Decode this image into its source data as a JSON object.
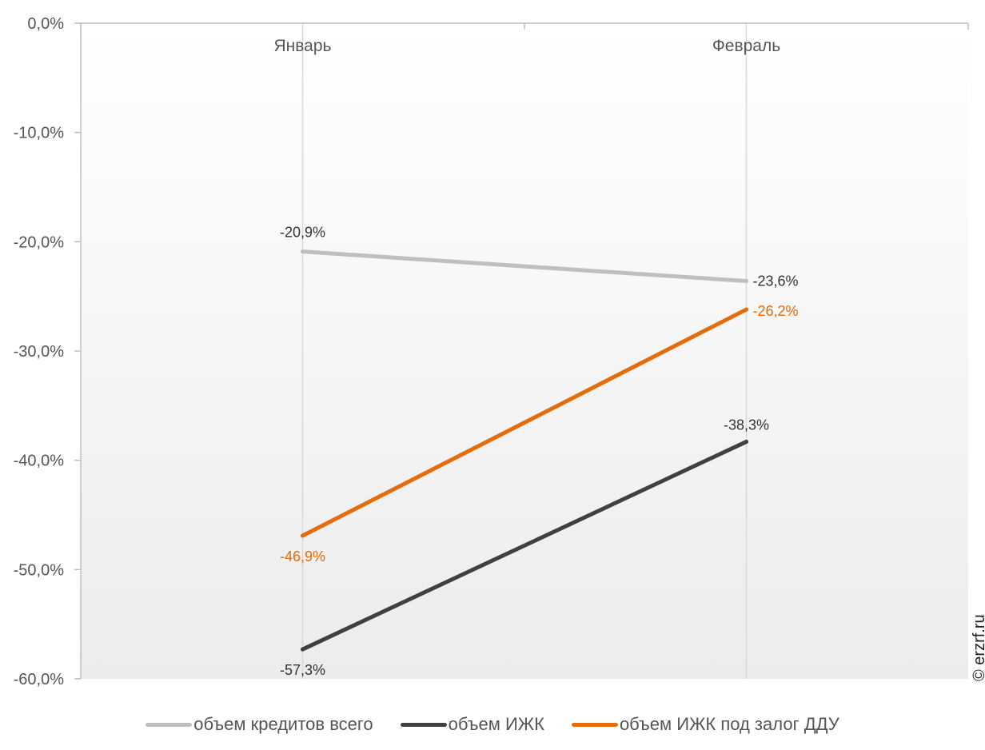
{
  "chart_data": {
    "type": "line",
    "categories": [
      "Январь",
      "Февраль"
    ],
    "ylim": [
      -60,
      0
    ],
    "yticks": [
      0,
      -10,
      -20,
      -30,
      -40,
      -50,
      -60
    ],
    "ytick_labels": [
      "0,0%",
      "-10,0%",
      "-20,0%",
      "-30,0%",
      "-40,0%",
      "-50,0%",
      "-60,0%"
    ],
    "grid": true,
    "legend_position": "bottom",
    "series": [
      {
        "name": "объем кредитов всего",
        "values": [
          -20.9,
          -23.6
        ],
        "labels": [
          "-20,9%",
          "-23,6%"
        ],
        "color": "#bfbfbf",
        "label_color": "#333333"
      },
      {
        "name": "объем ИЖК",
        "values": [
          -57.3,
          -38.3
        ],
        "labels": [
          "-57,3%",
          "-38,3%"
        ],
        "color": "#404040",
        "label_color": "#333333"
      },
      {
        "name": "объем ИЖК под залог ДДУ",
        "values": [
          -46.9,
          -26.2
        ],
        "labels": [
          "-46,9%",
          "-26,2%"
        ],
        "color": "#e46c0a",
        "label_color": "#e46c0a"
      }
    ]
  },
  "watermark": "© erzrf.ru"
}
